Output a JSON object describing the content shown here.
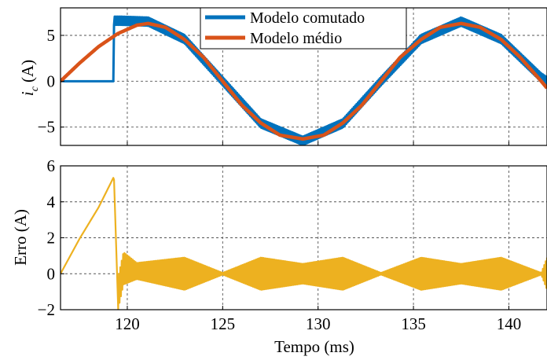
{
  "chart_data": [
    {
      "type": "line",
      "title": "",
      "xlabel": "",
      "ylabel": "i_c (A)",
      "ylabel_main": "i",
      "ylabel_sub": "c",
      "ylabel_unit": "(A)",
      "xlim": [
        116.5,
        142
      ],
      "ylim": [
        -7,
        8
      ],
      "xticks": [
        120,
        125,
        130,
        135,
        140
      ],
      "yticks": [
        -5,
        0,
        5
      ],
      "ytick_labels": [
        "−5",
        "0",
        "5"
      ],
      "grid": true,
      "legend_position": "top-center",
      "series": [
        {
          "name": "Modelo comutado",
          "color": "#0072BD",
          "x": [
            116.5,
            119.3,
            119.3,
            119.6,
            121.1,
            123.0,
            125.0,
            127.0,
            129.2,
            131.3,
            133.3,
            135.4,
            137.5,
            139.6,
            141.7,
            142.0
          ],
          "y": [
            0.0,
            0.0,
            6.6,
            6.6,
            6.5,
            4.6,
            0.0,
            -4.6,
            -6.5,
            -4.6,
            0.0,
            4.6,
            6.5,
            4.6,
            0.4,
            0.0
          ],
          "ripple_amplitude": 0.45
        },
        {
          "name": "Modelo médio",
          "color": "#D95319",
          "x": [
            116.5,
            117.5,
            118.5,
            119.5,
            120.5,
            121.1,
            122.0,
            123.0,
            124.0,
            125.0,
            126.0,
            127.0,
            128.0,
            129.2,
            130.3,
            131.3,
            132.3,
            133.3,
            134.3,
            135.4,
            136.4,
            137.5,
            138.5,
            139.6,
            140.6,
            141.7,
            142.0
          ],
          "y": [
            0.0,
            1.98,
            3.78,
            5.19,
            6.11,
            6.3,
            5.88,
            4.55,
            2.6,
            0.0,
            -2.6,
            -4.55,
            -5.88,
            -6.3,
            -5.88,
            -4.55,
            -2.6,
            0.0,
            2.6,
            4.55,
            5.88,
            6.3,
            5.88,
            4.55,
            2.6,
            0.0,
            -0.75
          ]
        }
      ]
    },
    {
      "type": "line",
      "title": "",
      "xlabel": "Tempo (ms)",
      "ylabel": "Erro (A)",
      "xlim": [
        116.5,
        142
      ],
      "ylim": [
        -2,
        6
      ],
      "xticks": [
        120,
        125,
        130,
        135,
        140
      ],
      "yticks": [
        -2,
        0,
        2,
        4,
        6
      ],
      "ytick_labels": [
        "−2",
        "0",
        "2",
        "4",
        "6"
      ],
      "grid": true,
      "series": [
        {
          "name": "",
          "color": "#EDB120",
          "x": [
            116.5,
            117.5,
            118.5,
            119.3,
            119.5,
            119.8,
            120.5,
            123.0,
            125.0,
            127.0,
            129.2,
            131.3,
            133.3,
            135.4,
            137.5,
            139.6,
            141.7,
            142.0
          ],
          "y": [
            0.0,
            1.95,
            3.7,
            5.4,
            -1.2,
            0.3,
            0.15,
            0.0,
            0.0,
            0.0,
            0.0,
            0.0,
            0.0,
            0.0,
            0.0,
            0.0,
            0.0,
            0.0
          ],
          "envelope": [
            0.6,
            0.6,
            0.6,
            0.6,
            0.9,
            0.9,
            0.45,
            0.9,
            0.05,
            0.9,
            0.55,
            0.9,
            0.05,
            0.9,
            0.55,
            0.9,
            0.05,
            0.9
          ]
        }
      ]
    }
  ]
}
